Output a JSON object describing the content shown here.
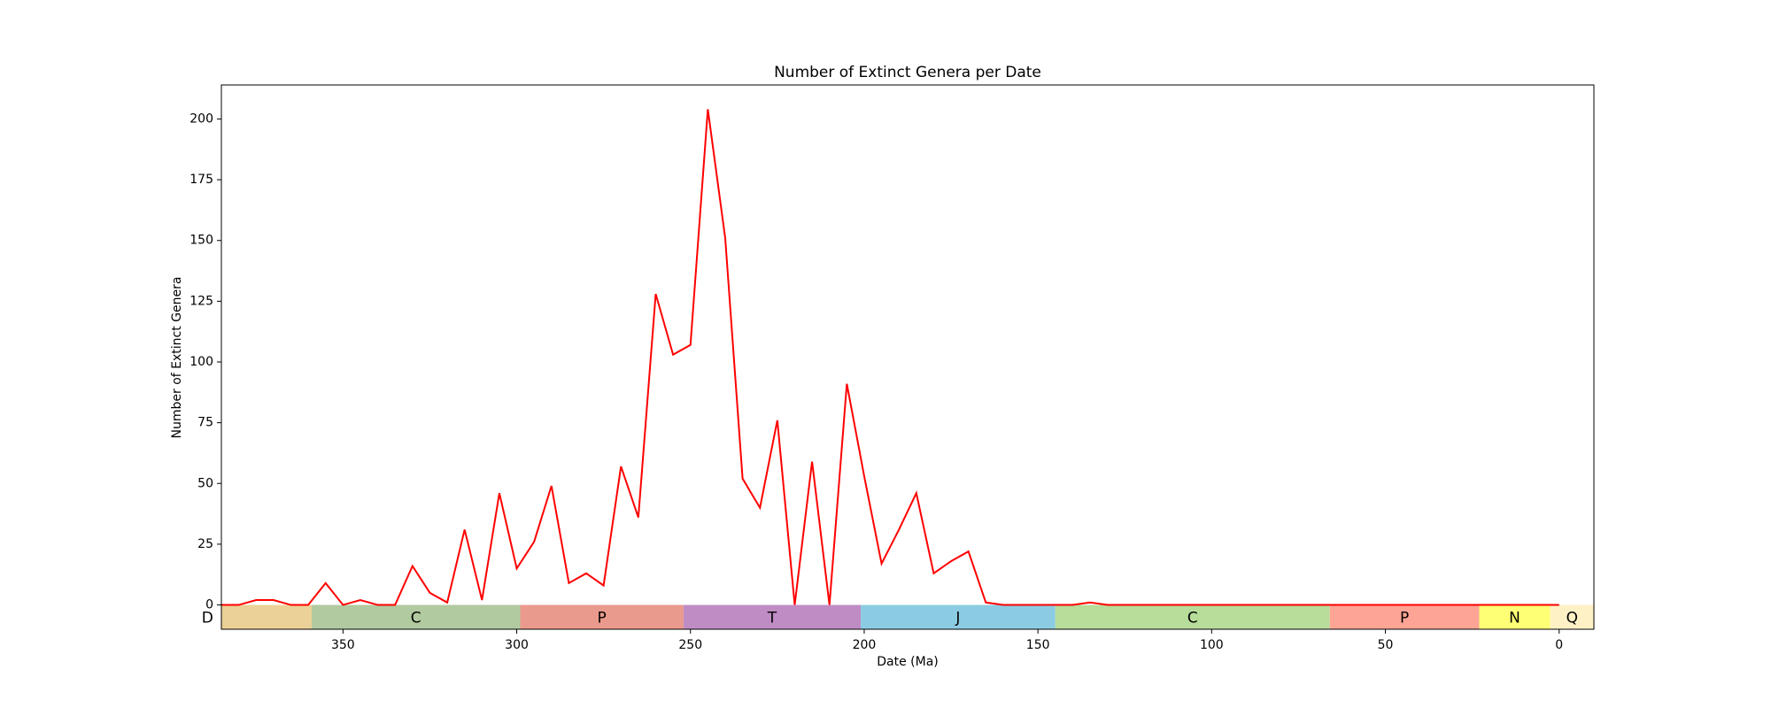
{
  "chart_data": {
    "type": "line",
    "title": "Number of Extinct Genera per Date",
    "x_label": "Date (Ma)",
    "y_label": "Number of Extinct Genera",
    "xlim": [
      385,
      -10
    ],
    "ylim": [
      -10,
      214
    ],
    "xticks": [
      350,
      300,
      250,
      200,
      150,
      100,
      50,
      0
    ],
    "yticks": [
      0,
      25,
      50,
      75,
      100,
      125,
      150,
      175,
      200
    ],
    "grid": false,
    "x": [
      385,
      380,
      375,
      370,
      365,
      360,
      355,
      350,
      345,
      340,
      335,
      330,
      325,
      320,
      315,
      310,
      305,
      300,
      295,
      290,
      285,
      280,
      275,
      270,
      265,
      260,
      255,
      250,
      245,
      240,
      235,
      230,
      225,
      220,
      215,
      210,
      205,
      200,
      195,
      190,
      185,
      180,
      175,
      170,
      165,
      160,
      155,
      150,
      145,
      140,
      135,
      130,
      125,
      120,
      115,
      110,
      105,
      100,
      95,
      90,
      85,
      80,
      75,
      70,
      65,
      60,
      55,
      50,
      45,
      40,
      35,
      30,
      25,
      20,
      15,
      10,
      5,
      0
    ],
    "series": [
      {
        "name": "Extinct genera",
        "color": "#ff0000",
        "values": [
          0,
          0,
          2,
          2,
          0,
          0,
          9,
          0,
          2,
          0,
          0,
          16,
          5,
          1,
          31,
          2,
          46,
          15,
          26,
          49,
          9,
          13,
          8,
          57,
          36,
          128,
          103,
          107,
          204,
          151,
          52,
          40,
          76,
          0,
          59,
          0,
          91,
          53,
          17,
          31,
          46,
          13,
          18,
          22,
          1,
          0,
          0,
          0,
          0,
          0,
          1,
          0,
          0,
          0,
          0,
          0,
          0,
          0,
          0,
          0,
          0,
          0,
          0,
          0,
          0,
          0,
          0,
          0,
          0,
          0,
          0,
          0,
          0,
          0,
          0,
          0,
          0,
          0
        ]
      }
    ],
    "periods": [
      {
        "label": "D",
        "start": 419,
        "end": 359,
        "color": "#e9cc8c"
      },
      {
        "label": "C",
        "start": 359,
        "end": 299,
        "color": "#a8c495"
      },
      {
        "label": "P",
        "start": 299,
        "end": 252,
        "color": "#e88f7f"
      },
      {
        "label": "T",
        "start": 252,
        "end": 201,
        "color": "#b97fbe"
      },
      {
        "label": "J",
        "start": 201,
        "end": 145,
        "color": "#7fc7df"
      },
      {
        "label": "C",
        "start": 145,
        "end": 66,
        "color": "#aed98e"
      },
      {
        "label": "P",
        "start": 66,
        "end": 23,
        "color": "#fd9a8a"
      },
      {
        "label": "N",
        "start": 23,
        "end": 2.6,
        "color": "#ffff66"
      },
      {
        "label": "Q",
        "start": 2.6,
        "end": -10,
        "color": "#fff0c0"
      }
    ]
  }
}
